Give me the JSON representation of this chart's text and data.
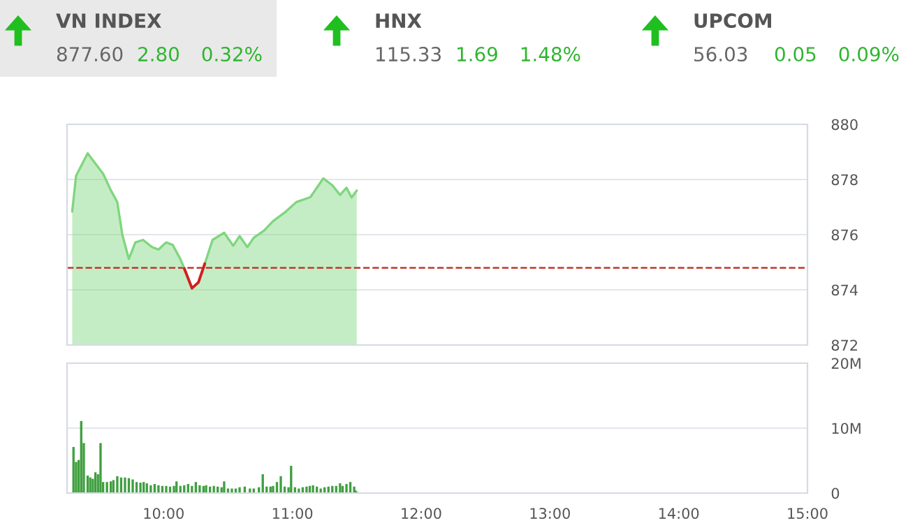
{
  "chart_data": [
    {
      "type": "other",
      "annotations": [
        "VN INDEX",
        "877.60",
        "2.80",
        "0.32%",
        "HNX",
        "115.33",
        "1.69",
        "1.48%",
        "UPCOM",
        "56.03",
        "0.05",
        "0.09%"
      ]
    },
    {
      "type": "area",
      "tick_labels": "y",
      "grid": "y",
      "xlim": [
        9.25,
        15
      ],
      "ylim": [
        872,
        880
      ],
      "yticks": [
        872,
        874,
        876,
        878,
        880
      ],
      "ref_lines": [
        {
          "axis": "y",
          "value": 874.8,
          "color": "#c0392b",
          "line_style": "dashed"
        }
      ],
      "series": [
        {
          "type": "area",
          "color": "#7fd67f",
          "x": [
            9.29,
            9.32,
            9.41,
            9.46,
            9.53,
            9.59,
            9.64,
            9.68,
            9.73,
            9.78,
            9.84,
            9.91,
            9.96,
            10.02,
            10.07,
            10.13,
            10.16,
            10.22,
            10.27,
            10.32,
            10.38,
            10.47,
            10.54,
            10.59,
            10.65,
            10.7,
            10.78,
            10.85,
            10.95,
            11.03,
            11.14,
            11.24,
            11.31,
            11.37,
            11.42,
            11.46,
            11.5
          ],
          "values": [
            876.84,
            878.13,
            878.95,
            878.64,
            878.21,
            877.61,
            877.18,
            875.98,
            875.12,
            875.72,
            875.81,
            875.55,
            875.46,
            875.72,
            875.63,
            875.12,
            874.78,
            874.06,
            874.27,
            874.95,
            875.81,
            876.07,
            875.6,
            875.95,
            875.55,
            875.89,
            876.15,
            876.49,
            876.84,
            877.18,
            877.36,
            878.04,
            877.79,
            877.44,
            877.7,
            877.35,
            877.6
          ]
        },
        {
          "type": "line",
          "color": "#d21f1f",
          "x": [
            10.16,
            10.22,
            10.27,
            10.32
          ],
          "values": [
            874.78,
            874.06,
            874.27,
            874.95
          ]
        }
      ]
    },
    {
      "type": "bar",
      "grid": "y",
      "xlim": [
        9.25,
        15
      ],
      "xticks": [
        {
          "value": 10,
          "label": "10:00"
        },
        {
          "value": 11,
          "label": "11:00"
        },
        {
          "value": 12,
          "label": "12:00"
        },
        {
          "value": 13,
          "label": "13:00"
        },
        {
          "value": 14,
          "label": "14:00"
        },
        {
          "value": 15,
          "label": "15:00"
        }
      ],
      "ylim": [
        0,
        20
      ],
      "yticks": [
        {
          "value": 0,
          "label": "0"
        },
        {
          "value": 10,
          "label": "10M"
        },
        {
          "value": 20,
          "label": "20M"
        }
      ],
      "series": [
        {
          "color": "#3f9f3f",
          "x": [
            9.3,
            9.32,
            9.34,
            9.36,
            9.38,
            9.41,
            9.43,
            9.45,
            9.47,
            9.49,
            9.51,
            9.53,
            9.56,
            9.59,
            9.61,
            9.64,
            9.67,
            9.7,
            9.73,
            9.76,
            9.79,
            9.82,
            9.845,
            9.87,
            9.9,
            9.93,
            9.96,
            9.99,
            10.02,
            10.05,
            10.08,
            10.1,
            10.13,
            10.16,
            10.19,
            10.22,
            10.25,
            10.28,
            10.31,
            10.33,
            10.36,
            10.39,
            10.42,
            10.45,
            10.47,
            10.5,
            10.53,
            10.56,
            10.59,
            10.63,
            10.67,
            10.7,
            10.74,
            10.77,
            10.8,
            10.83,
            10.85,
            10.88,
            10.91,
            10.94,
            10.97,
            10.99,
            11.02,
            11.05,
            11.08,
            11.11,
            11.135,
            11.16,
            11.19,
            11.22,
            11.25,
            11.28,
            11.31,
            11.34,
            11.37,
            11.39,
            11.42,
            11.45,
            11.48,
            11.49,
            11.5
          ],
          "values": [
            7.1,
            4.8,
            5.1,
            11.1,
            7.7,
            2.7,
            2.4,
            2.2,
            3.2,
            2.9,
            7.7,
            1.7,
            1.7,
            1.8,
            2.0,
            2.6,
            2.4,
            2.4,
            2.3,
            2.1,
            1.7,
            1.6,
            1.7,
            1.5,
            1.2,
            1.4,
            1.2,
            1.1,
            1.1,
            1.0,
            1.1,
            1.8,
            1.1,
            1.2,
            1.4,
            1.1,
            1.7,
            1.2,
            1.1,
            1.2,
            1.0,
            1.1,
            1.0,
            0.9,
            1.8,
            0.7,
            0.7,
            0.7,
            0.9,
            1.0,
            0.7,
            0.7,
            0.9,
            2.9,
            1.0,
            1.0,
            1.1,
            1.7,
            2.6,
            1.0,
            0.9,
            4.2,
            0.9,
            0.7,
            0.9,
            1.0,
            1.1,
            1.2,
            1.0,
            0.7,
            0.9,
            1.0,
            1.1,
            1.1,
            1.5,
            1.1,
            1.4,
            1.7,
            1.0,
            0.4,
            0.2
          ]
        }
      ]
    }
  ]
}
